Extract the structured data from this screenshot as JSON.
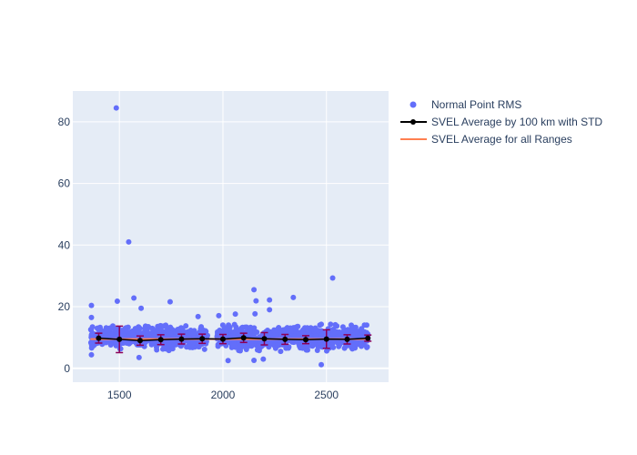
{
  "chart_data": {
    "type": "scatter",
    "xlim": [
      1275,
      2800
    ],
    "ylim": [
      -4.5,
      90
    ],
    "x_ticks": [
      1500,
      2000,
      2500
    ],
    "y_ticks": [
      0,
      20,
      40,
      60,
      80
    ],
    "x_tick_labels": [
      "1500",
      "2000",
      "2500"
    ],
    "y_tick_labels": [
      "0",
      "20",
      "40",
      "60",
      "80"
    ],
    "grid": true,
    "legend_position": "top-right",
    "colors": {
      "plot_bg": "#e5ecf6",
      "points": "#636efa",
      "average_line": "#000000",
      "error_bars": "#8b0057",
      "overall_line": "#ff7f50",
      "grid": "#ffffff"
    },
    "series": [
      {
        "name": "Normal Point RMS",
        "kind": "markers",
        "cluster_x_range": [
          1360,
          2700
        ],
        "cluster_y_typical": [
          5,
          15
        ],
        "outliers": [
          {
            "x": 1485,
            "y": 84.5
          },
          {
            "x": 1545,
            "y": 41
          },
          {
            "x": 2530,
            "y": 29.3
          },
          {
            "x": 2150,
            "y": 25.5
          },
          {
            "x": 2340,
            "y": 23
          },
          {
            "x": 1570,
            "y": 22.8
          },
          {
            "x": 1490,
            "y": 21.8
          },
          {
            "x": 1745,
            "y": 21.6
          },
          {
            "x": 2160,
            "y": 21.9
          },
          {
            "x": 2225,
            "y": 22.2
          },
          {
            "x": 1365,
            "y": 20.4
          },
          {
            "x": 1605,
            "y": 19.5
          },
          {
            "x": 2225,
            "y": 19
          },
          {
            "x": 2155,
            "y": 17.7
          },
          {
            "x": 2060,
            "y": 17.6
          },
          {
            "x": 1980,
            "y": 17.1
          },
          {
            "x": 1880,
            "y": 16.8
          },
          {
            "x": 1365,
            "y": 16.5
          },
          {
            "x": 2475,
            "y": 14.3
          },
          {
            "x": 2520,
            "y": 14.3
          },
          {
            "x": 2620,
            "y": 14
          },
          {
            "x": 2025,
            "y": 2.5
          },
          {
            "x": 2150,
            "y": 2.6
          },
          {
            "x": 2195,
            "y": 3
          },
          {
            "x": 1595,
            "y": 3.5
          },
          {
            "x": 2475,
            "y": 1.2
          },
          {
            "x": 1365,
            "y": 4.4
          }
        ]
      },
      {
        "name": "SVEL Average by 100 km with STD",
        "kind": "line+markers+error",
        "x": [
          1400,
          1500,
          1600,
          1700,
          1800,
          1900,
          2000,
          2100,
          2200,
          2300,
          2400,
          2500,
          2600,
          2700
        ],
        "y": [
          9.8,
          9.4,
          9.0,
          9.3,
          9.5,
          9.6,
          9.5,
          9.9,
          9.6,
          9.4,
          9.3,
          9.5,
          9.4,
          9.8
        ],
        "std": [
          1.6,
          4.3,
          1.5,
          1.6,
          1.6,
          1.5,
          1.5,
          1.5,
          2.0,
          1.6,
          1.3,
          3.0,
          1.5,
          1.0
        ]
      },
      {
        "name": "SVEL Average for all Ranges",
        "kind": "line",
        "x": [
          1360,
          2700
        ],
        "y": [
          9.5,
          9.5
        ]
      }
    ]
  }
}
